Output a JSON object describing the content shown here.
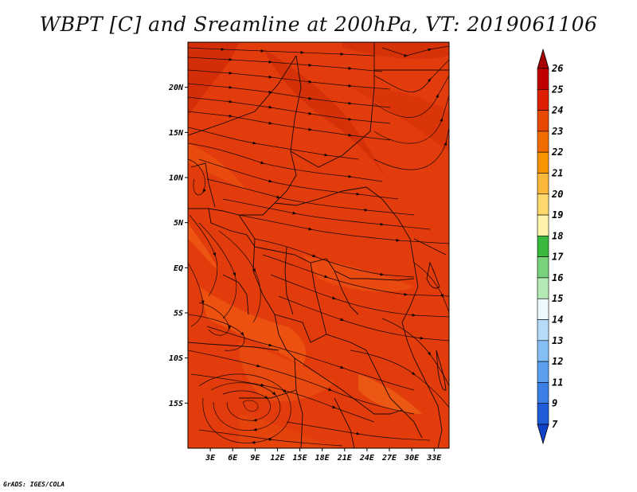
{
  "title": "WBPT [C] and Sreamline at 200hPa, VT: 2019061106",
  "footer": "GrADS: IGES/COLA",
  "map": {
    "lat_labels": [
      "20N",
      "15N",
      "10N",
      "5N",
      "EQ",
      "5S",
      "10S",
      "15S"
    ],
    "lat_values": [
      20,
      15,
      10,
      5,
      0,
      -5,
      -10,
      -15
    ],
    "lon_labels": [
      "3E",
      "6E",
      "9E",
      "12E",
      "15E",
      "18E",
      "21E",
      "24E",
      "27E",
      "30E",
      "33E"
    ],
    "lon_values": [
      3,
      6,
      9,
      12,
      15,
      18,
      21,
      24,
      27,
      30,
      33
    ],
    "lon_range": [
      0,
      35
    ],
    "lat_range": [
      -20,
      25
    ],
    "field_color": "#e03c0c",
    "streamline_color": "#1a0804",
    "boundary_color": "#1a0804"
  },
  "colorbar": {
    "levels": [
      "26",
      "25",
      "24",
      "23",
      "22",
      "21",
      "20",
      "19",
      "18",
      "17",
      "16",
      "15",
      "14",
      "13",
      "12",
      "11",
      "9",
      "7"
    ],
    "colors": [
      "#a50000",
      "#c00000",
      "#dc2000",
      "#e84800",
      "#f06c00",
      "#f89400",
      "#fcb838",
      "#fdd86c",
      "#fef2a8",
      "#38b83c",
      "#78d27c",
      "#b4ebb4",
      "#ecf8fc",
      "#b4dcf8",
      "#84bef4",
      "#5aa0ee",
      "#3a7ee6",
      "#1e5cd8",
      "#1042c8"
    ]
  }
}
